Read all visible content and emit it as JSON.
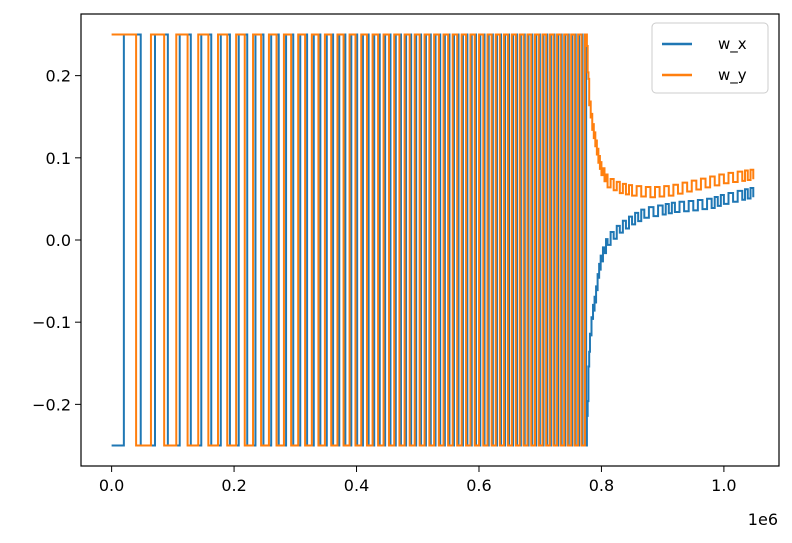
{
  "chart_data": {
    "type": "line",
    "title": "",
    "xlabel": "",
    "ylabel": "",
    "x_offset_label": "1e6",
    "x_scale": 1000000,
    "xlim": [
      -0.05,
      1.09
    ],
    "ylim": [
      -0.275,
      0.275
    ],
    "grid": false,
    "legend_position": "top-right",
    "x_ticks": [
      0.0,
      0.2,
      0.4,
      0.6,
      0.8,
      1.0
    ],
    "x_tick_labels": [
      "0.0",
      "0.2",
      "0.4",
      "0.6",
      "0.8",
      "1.0"
    ],
    "y_ticks": [
      -0.2,
      -0.1,
      0.0,
      0.1,
      0.2
    ],
    "y_tick_labels": [
      "−0.2",
      "−0.1",
      "0.0",
      "0.1",
      "0.2"
    ],
    "oscillation": {
      "amplitude": 0.25,
      "x_start": 0.0,
      "x_end": 0.775,
      "first_switch_w_x": 0.02,
      "first_switch_w_y": 0.04,
      "period_start": 0.075,
      "period_end": 0.011
    },
    "series": [
      {
        "name": "w_x",
        "color": "#1f77b4",
        "settle": [
          [
            0.775,
            -0.25
          ],
          [
            0.78,
            -0.13
          ],
          [
            0.785,
            -0.09
          ],
          [
            0.79,
            -0.07
          ],
          [
            0.795,
            -0.04
          ],
          [
            0.8,
            -0.02
          ],
          [
            0.81,
            0.0
          ],
          [
            0.83,
            0.015
          ],
          [
            0.85,
            0.025
          ],
          [
            0.87,
            0.033
          ],
          [
            0.9,
            0.037
          ],
          [
            0.92,
            0.04
          ],
          [
            0.95,
            0.042
          ],
          [
            0.98,
            0.045
          ],
          [
            1.0,
            0.05
          ],
          [
            1.03,
            0.055
          ],
          [
            1.048,
            0.058
          ]
        ]
      },
      {
        "name": "w_y",
        "color": "#ff7f0e",
        "settle": [
          [
            0.775,
            0.25
          ],
          [
            0.78,
            0.17
          ],
          [
            0.785,
            0.14
          ],
          [
            0.79,
            0.12
          ],
          [
            0.795,
            0.1
          ],
          [
            0.8,
            0.085
          ],
          [
            0.81,
            0.07
          ],
          [
            0.83,
            0.063
          ],
          [
            0.85,
            0.06
          ],
          [
            0.88,
            0.058
          ],
          [
            0.91,
            0.06
          ],
          [
            0.94,
            0.065
          ],
          [
            0.97,
            0.07
          ],
          [
            1.0,
            0.075
          ],
          [
            1.03,
            0.078
          ],
          [
            1.048,
            0.08
          ]
        ]
      }
    ]
  }
}
